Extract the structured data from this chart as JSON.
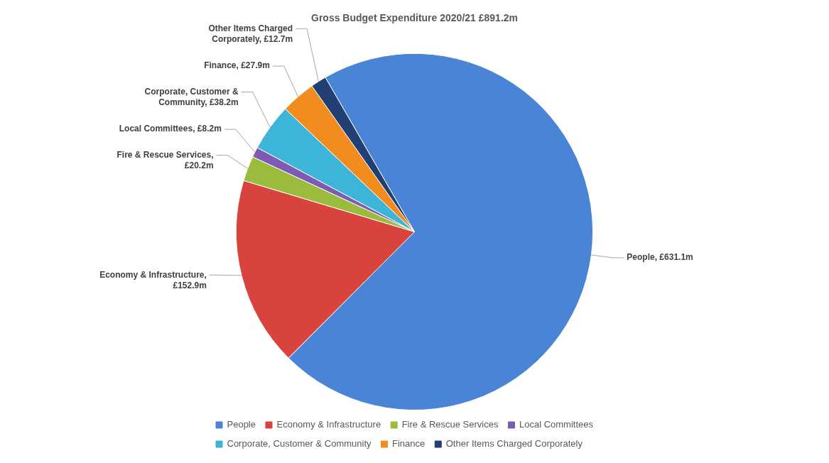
{
  "chart_data": {
    "type": "pie",
    "title": "Gross Budget Expenditure 2020/21 £891.2m",
    "categories": [
      "People",
      "Economy & Infrastructure",
      "Fire & Rescue Services",
      "Local Committees",
      "Corporate, Customer & Community",
      "Finance",
      "Other Items Charged Corporately"
    ],
    "values": [
      631.1,
      152.9,
      20.2,
      8.2,
      38.2,
      27.9,
      12.7
    ],
    "colors": [
      "#4a84d6",
      "#d8433e",
      "#9bbb3c",
      "#7e5bb3",
      "#3db5d8",
      "#f28c1f",
      "#213f72"
    ],
    "value_labels": [
      "People, £631.1m",
      "Economy & Infrastructure, £152.9m",
      "Fire & Rescue Services, £20.2m",
      "Local Committees, £8.2m",
      "Corporate, Customer & Community, £38.2m",
      "Finance, £27.9m",
      "Other Items Charged Corporately, £12.7m"
    ],
    "legend": "bottom"
  }
}
